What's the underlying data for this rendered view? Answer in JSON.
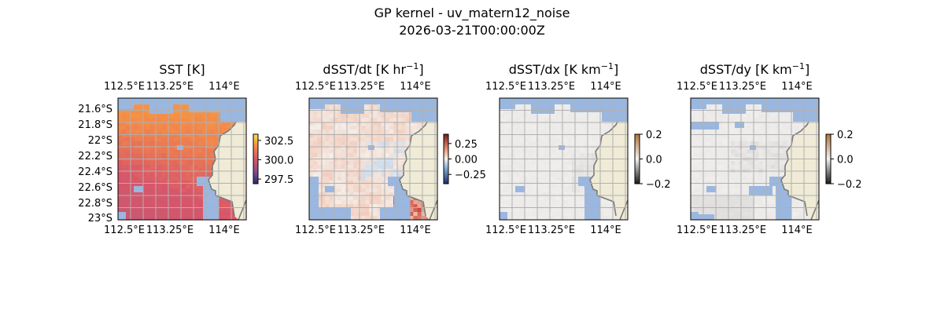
{
  "figure": {
    "title": "GP kernel - uv_matern12_noise",
    "timestamp": "2026-03-21T00:00:00Z"
  },
  "colors": {
    "land": "#efebd6",
    "masked": "#9ab7e0",
    "grid": "#b0b0b0",
    "coast": "#7a7a7a"
  },
  "chart_data": [
    {
      "type": "heatmap",
      "panel": "SST",
      "title": "SST [K]",
      "title_base": "SST [K]",
      "xlabel": "",
      "ylabel": "",
      "x_ticks": [
        "112.5°E",
        "113.25°E",
        "114°E"
      ],
      "x_tick_values": [
        112.5,
        113.25,
        114.0
      ],
      "y_ticks": [
        "21.6°S",
        "21.8°S",
        "22°S",
        "22.2°S",
        "22.4°S",
        "22.6°S",
        "22.8°S",
        "23°S"
      ],
      "y_tick_values": [
        -21.6,
        -21.8,
        -22.0,
        -22.2,
        -22.4,
        -22.6,
        -22.8,
        -23.0
      ],
      "xlim": [
        112.5,
        114.25
      ],
      "ylim": [
        -23.0,
        -21.5
      ],
      "grid": true,
      "colormap": "thermal",
      "colorbar_ticks": [
        "302.5",
        "300.0",
        "297.5"
      ],
      "colorbar_values": [
        302.5,
        300.0,
        297.5
      ],
      "clim": [
        296.9,
        303.3
      ]
    },
    {
      "type": "heatmap",
      "panel": "dSST/dt",
      "title": "dSST/dt [K hr⁻¹]",
      "title_base": "dSST/dt [K hr",
      "title_sup": "−1",
      "title_end": "]",
      "xlabel": "",
      "ylabel": "",
      "x_ticks": [
        "112.5°E",
        "113.25°E",
        "114°E"
      ],
      "x_tick_values": [
        112.5,
        113.25,
        114.0
      ],
      "xlim": [
        112.5,
        114.25
      ],
      "ylim": [
        -23.0,
        -21.5
      ],
      "grid": true,
      "colormap": "diverging",
      "colorbar_ticks": [
        "0.25",
        "0.00",
        "−0.25"
      ],
      "colorbar_values": [
        0.25,
        0.0,
        -0.25
      ],
      "clim": [
        -0.4,
        0.4
      ]
    },
    {
      "type": "heatmap",
      "panel": "dSST/dx",
      "title": "dSST/dx [K km⁻¹]",
      "title_base": "dSST/dx [K km",
      "title_sup": "−1",
      "title_end": "]",
      "xlabel": "",
      "ylabel": "",
      "x_ticks": [
        "112.5°E",
        "113.25°E",
        "114°E"
      ],
      "x_tick_values": [
        112.5,
        113.25,
        114.0
      ],
      "xlim": [
        112.5,
        114.25
      ],
      "ylim": [
        -23.0,
        -21.5
      ],
      "grid": true,
      "colormap": "gray-copper",
      "colorbar_ticks": [
        "0.2",
        "0.0",
        "−0.2"
      ],
      "colorbar_values": [
        0.2,
        0.0,
        -0.2
      ],
      "clim": [
        -0.2,
        0.2
      ]
    },
    {
      "type": "heatmap",
      "panel": "dSST/dy",
      "title": "dSST/dy [K km⁻¹]",
      "title_base": "dSST/dy [K km",
      "title_sup": "−1",
      "title_end": "]",
      "xlabel": "",
      "ylabel": "",
      "x_ticks": [
        "112.5°E",
        "113.25°E",
        "114°E"
      ],
      "x_tick_values": [
        112.5,
        113.25,
        114.0
      ],
      "xlim": [
        112.5,
        114.25
      ],
      "ylim": [
        -23.0,
        -21.5
      ],
      "grid": true,
      "colormap": "gray-copper",
      "colorbar_ticks": [
        "0.2",
        "0.0",
        "−0.2"
      ],
      "colorbar_values": [
        0.2,
        0.0,
        -0.2
      ],
      "clim": [
        -0.2,
        0.2
      ]
    }
  ]
}
